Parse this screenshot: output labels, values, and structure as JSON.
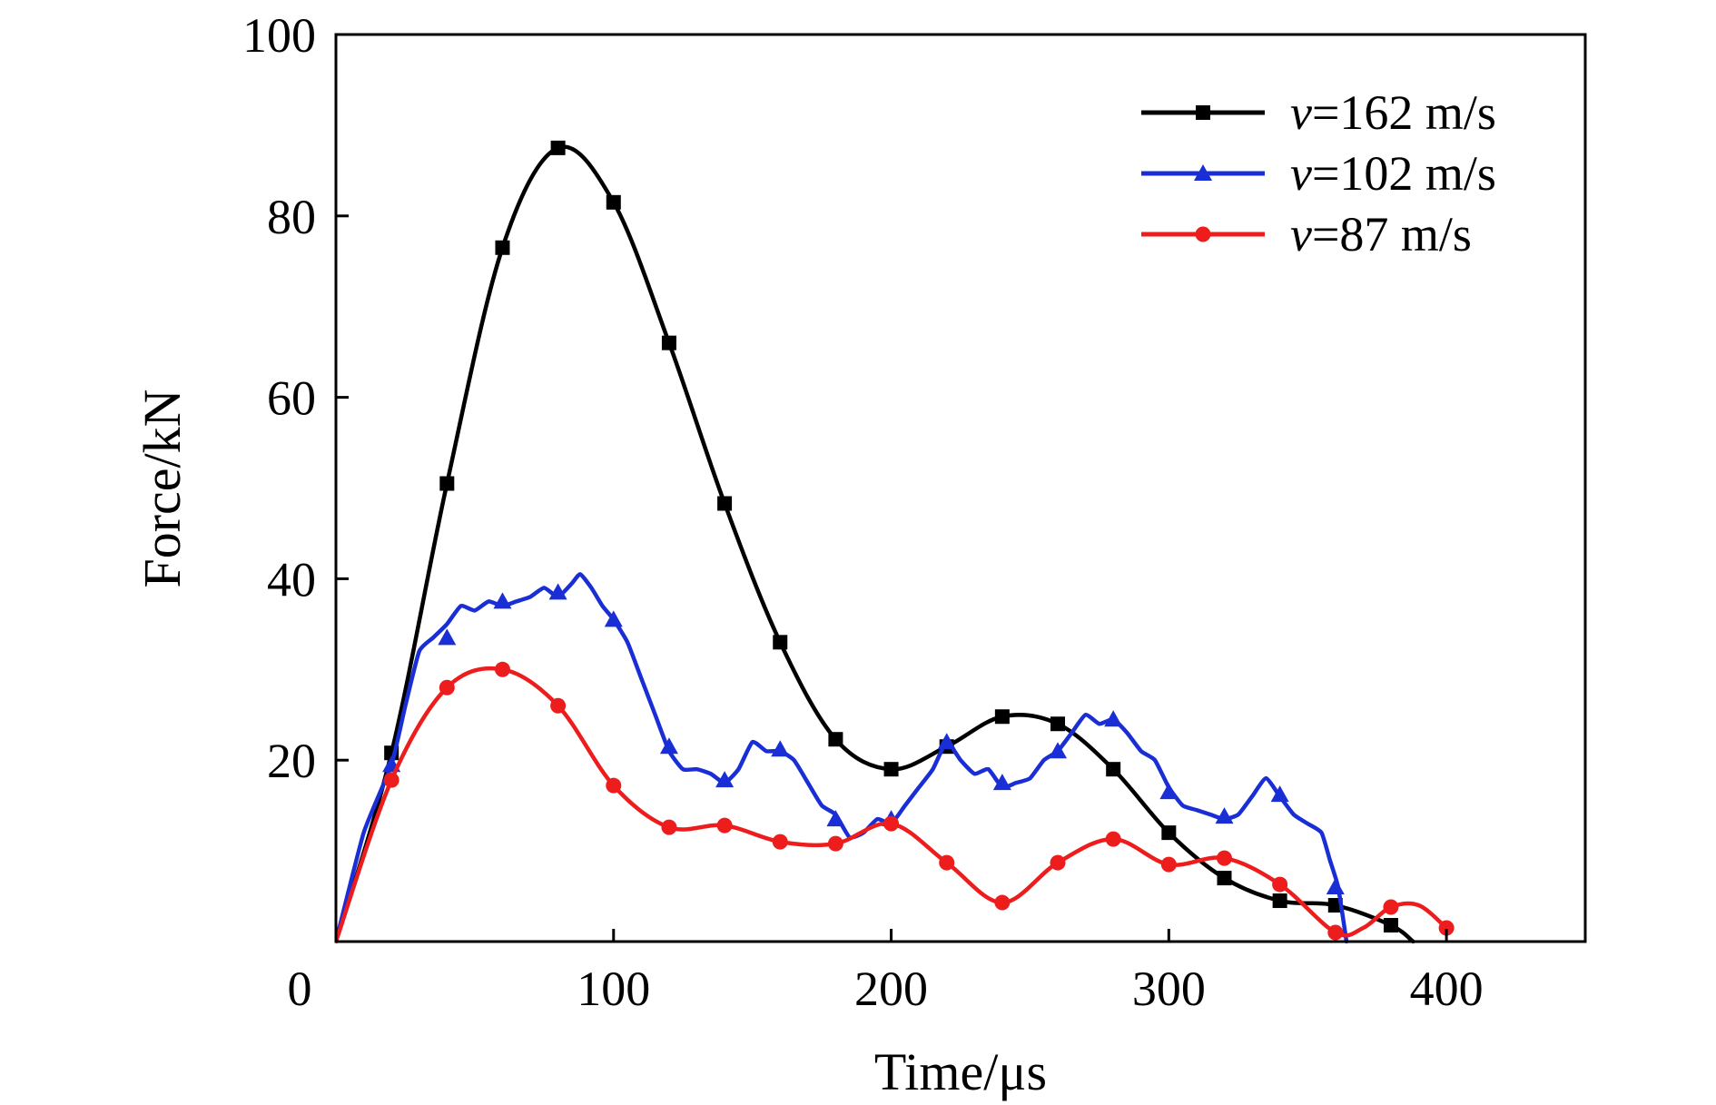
{
  "chart_data": {
    "type": "line",
    "xlabel": "Time/μs",
    "ylabel": "Force/kN",
    "xlim": [
      0,
      450
    ],
    "ylim": [
      0,
      100
    ],
    "x_ticks": [
      0,
      100,
      200,
      300,
      400
    ],
    "y_ticks": [
      20,
      40,
      60,
      80,
      100
    ],
    "grid": false,
    "legend_position": "top-right",
    "series": [
      {
        "name_italic": "v",
        "name_rest": "=162 m/s",
        "color": "#000000",
        "marker": "square",
        "x": [
          0,
          20,
          40,
          60,
          80,
          100,
          120,
          140,
          160,
          180,
          200,
          220,
          240,
          260,
          280,
          300,
          320,
          340,
          360,
          380,
          388
        ],
        "y": [
          0,
          20.8,
          50.5,
          76.5,
          87.5,
          81.5,
          66.0,
          48.3,
          33.0,
          22.3,
          19.0,
          21.5,
          24.8,
          24.0,
          19.0,
          12.0,
          7.0,
          4.5,
          4.0,
          1.8,
          0
        ],
        "markers_x": [
          20,
          40,
          60,
          80,
          100,
          120,
          140,
          160,
          180,
          200,
          220,
          240,
          260,
          280,
          300,
          320,
          340,
          360,
          380
        ],
        "markers_y": [
          20.8,
          50.5,
          76.5,
          87.5,
          81.5,
          66.0,
          48.3,
          33.0,
          22.3,
          19.0,
          21.5,
          24.8,
          24.0,
          19.0,
          12.0,
          7.0,
          4.5,
          4.0,
          1.8
        ]
      },
      {
        "name_italic": "v",
        "name_rest": "=102 m/s",
        "color": "#1a2ed6",
        "marker": "triangle",
        "x": [
          0,
          10,
          20,
          25,
          30,
          35,
          40,
          45,
          50,
          55,
          60,
          65,
          70,
          75,
          80,
          85,
          88,
          92,
          96,
          100,
          105,
          110,
          115,
          120,
          125,
          130,
          135,
          140,
          145,
          150,
          155,
          160,
          165,
          170,
          175,
          180,
          185,
          190,
          195,
          200,
          205,
          210,
          215,
          220,
          225,
          230,
          235,
          240,
          245,
          250,
          255,
          260,
          265,
          270,
          275,
          280,
          285,
          290,
          295,
          300,
          305,
          310,
          315,
          320,
          325,
          330,
          335,
          340,
          345,
          350,
          355,
          358,
          361,
          364
        ],
        "y": [
          0,
          12,
          19.5,
          26,
          32,
          33.5,
          35,
          37,
          36.5,
          37.5,
          37,
          37.5,
          38,
          39,
          38,
          39.5,
          40.5,
          39,
          37,
          35.5,
          33,
          29,
          25,
          21,
          19,
          19,
          18.5,
          17.5,
          19,
          22,
          21,
          21,
          20,
          17.5,
          15,
          14,
          11.5,
          12,
          13.5,
          13,
          15,
          17,
          19,
          22,
          20,
          18.5,
          19,
          17,
          17.5,
          18,
          20,
          21,
          23,
          25,
          24,
          24.5,
          23,
          21,
          20,
          17,
          15,
          14.5,
          14,
          13.5,
          14,
          16,
          18,
          16,
          14,
          13,
          12,
          9,
          6,
          0
        ],
        "markers_x": [
          20,
          40,
          60,
          80,
          100,
          120,
          140,
          160,
          180,
          200,
          220,
          240,
          260,
          280,
          300,
          320,
          340,
          360
        ],
        "markers_y": [
          19.5,
          33.5,
          37.5,
          38.5,
          35.5,
          21.5,
          17.8,
          21.2,
          13.5,
          13.5,
          22.0,
          17.5,
          21.0,
          24.5,
          16.5,
          13.8,
          16.2,
          6.0
        ]
      },
      {
        "name_italic": "v",
        "name_rest": "=87 m/s",
        "color": "#ee1d1d",
        "marker": "circle",
        "x": [
          0,
          20,
          40,
          60,
          80,
          100,
          120,
          140,
          160,
          180,
          200,
          220,
          240,
          260,
          280,
          300,
          320,
          340,
          360,
          370,
          380,
          390,
          400
        ],
        "y": [
          0,
          17.8,
          28.0,
          30.0,
          26.0,
          17.2,
          12.6,
          12.8,
          11.0,
          10.8,
          13.0,
          8.7,
          4.3,
          8.7,
          11.3,
          8.5,
          9.2,
          6.3,
          1.0,
          1.5,
          3.8,
          4.0,
          1.5
        ],
        "markers_x": [
          20,
          40,
          60,
          80,
          100,
          120,
          140,
          160,
          180,
          200,
          220,
          240,
          260,
          280,
          300,
          320,
          340,
          360,
          380,
          400
        ],
        "markers_y": [
          17.8,
          28.0,
          30.0,
          26.0,
          17.2,
          12.6,
          12.8,
          11.0,
          10.8,
          13.0,
          8.7,
          4.3,
          8.7,
          11.3,
          8.5,
          9.2,
          6.3,
          1.0,
          3.8,
          1.5
        ]
      }
    ]
  }
}
